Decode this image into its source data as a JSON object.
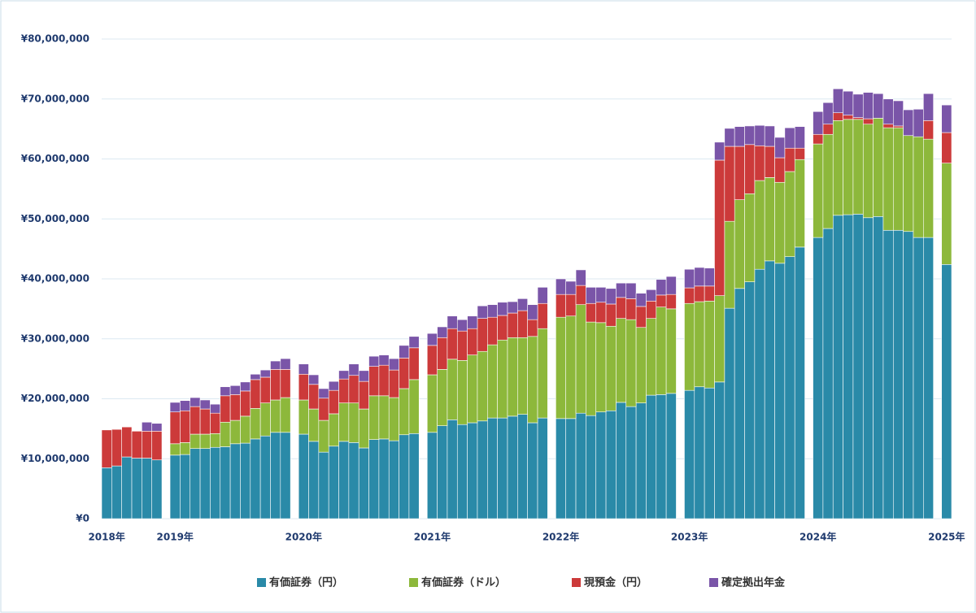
{
  "chart_data": {
    "type": "stacked-bar",
    "categories": [
      "2018年",
      null,
      null,
      null,
      null,
      null,
      "2019年",
      null,
      null,
      null,
      null,
      null,
      null,
      null,
      null,
      null,
      null,
      null,
      "2020年",
      null,
      null,
      null,
      null,
      null,
      null,
      null,
      null,
      null,
      null,
      null,
      "2021年",
      null,
      null,
      null,
      null,
      null,
      null,
      null,
      null,
      null,
      null,
      null,
      "2022年",
      null,
      null,
      null,
      null,
      null,
      null,
      null,
      null,
      null,
      null,
      null,
      "2023年",
      null,
      null,
      null,
      null,
      null,
      null,
      null,
      null,
      null,
      null,
      null,
      "2024年",
      null,
      null,
      null,
      null,
      null,
      null,
      null,
      null,
      null,
      null,
      null,
      "2025年"
    ],
    "series": [
      {
        "name": "有価証券（円）",
        "color": "#2a8aa8",
        "values": [
          8500000,
          8800000,
          10300000,
          10100000,
          10100000,
          9800000,
          10600000,
          10700000,
          11700000,
          11700000,
          11900000,
          12000000,
          12500000,
          12600000,
          13300000,
          13800000,
          14400000,
          14400000,
          14100000,
          12900000,
          11100000,
          12100000,
          12900000,
          12700000,
          11800000,
          13200000,
          13300000,
          13000000,
          14000000,
          14200000,
          14400000,
          15500000,
          16500000,
          15700000,
          16000000,
          16300000,
          16800000,
          16800000,
          17100000,
          17400000,
          16000000,
          16800000,
          16700000,
          16700000,
          17600000,
          17200000,
          17800000,
          18000000,
          19400000,
          18700000,
          19300000,
          20600000,
          20700000,
          20900000,
          21400000,
          22000000,
          21800000,
          22800000,
          35100000,
          38400000,
          39500000,
          41600000,
          43000000,
          42600000,
          43700000,
          45300000,
          46900000,
          48400000,
          50600000,
          50700000,
          50800000,
          50200000,
          50400000,
          48100000,
          48100000,
          47900000,
          46900000,
          46900000,
          42400000
        ]
      },
      {
        "name": "有価証券（ドル）",
        "color": "#8db83b",
        "values": [
          0,
          0,
          0,
          0,
          0,
          0,
          1900000,
          2000000,
          2400000,
          2400000,
          2300000,
          4100000,
          3900000,
          4500000,
          5100000,
          5500000,
          5400000,
          5800000,
          5700000,
          5400000,
          5300000,
          5400000,
          6400000,
          6600000,
          6500000,
          7300000,
          7200000,
          7200000,
          7700000,
          9000000,
          9600000,
          9400000,
          10100000,
          10700000,
          11300000,
          11600000,
          12200000,
          13000000,
          13100000,
          12800000,
          14400000,
          14900000,
          16900000,
          17100000,
          18100000,
          15600000,
          14900000,
          14100000,
          14000000,
          14500000,
          12600000,
          12800000,
          14600000,
          14100000,
          14500000,
          14200000,
          14500000,
          14400000,
          14500000,
          14800000,
          14700000,
          14800000,
          13900000,
          13500000,
          14200000,
          14600000,
          15600000,
          15700000,
          15800000,
          15900000,
          15800000,
          15600000,
          16400000,
          17100000,
          17100000,
          16000000,
          16800000,
          16400000,
          16900000
        ]
      },
      {
        "name": "現預金（円）",
        "color": "#cc3a3a",
        "values": [
          6300000,
          6100000,
          5000000,
          4500000,
          4500000,
          4800000,
          5300000,
          5300000,
          4600000,
          4200000,
          3400000,
          4400000,
          4300000,
          4200000,
          4800000,
          4300000,
          5100000,
          4700000,
          4300000,
          4100000,
          3700000,
          3900000,
          4000000,
          4600000,
          4600000,
          4900000,
          5100000,
          4600000,
          5100000,
          5300000,
          4900000,
          5300000,
          5100000,
          4900000,
          4400000,
          5500000,
          4600000,
          4100000,
          4100000,
          4500000,
          2800000,
          4200000,
          3800000,
          3600000,
          3200000,
          3100000,
          3400000,
          3700000,
          3500000,
          3500000,
          3500000,
          2900000,
          2000000,
          2400000,
          2600000,
          2600000,
          2500000,
          22600000,
          12500000,
          8900000,
          8200000,
          5800000,
          5200000,
          4100000,
          3900000,
          1900000,
          1600000,
          1700000,
          1300000,
          700000,
          300000,
          900000,
          0,
          600000,
          300000,
          0,
          0,
          3100000,
          5100000
        ]
      },
      {
        "name": "確定拠出年金",
        "color": "#7a55a8",
        "values": [
          0,
          0,
          0,
          0,
          1500000,
          1300000,
          1600000,
          1700000,
          1500000,
          1500000,
          1500000,
          1500000,
          1500000,
          1500000,
          900000,
          1200000,
          1400000,
          1800000,
          1700000,
          1600000,
          1600000,
          1500000,
          1400000,
          1900000,
          1800000,
          1700000,
          1700000,
          1900000,
          2100000,
          1900000,
          2000000,
          1800000,
          2100000,
          1900000,
          2100000,
          2100000,
          2100000,
          2200000,
          1900000,
          2000000,
          2500000,
          2700000,
          2600000,
          2200000,
          2600000,
          2700000,
          2500000,
          2600000,
          2400000,
          2600000,
          2200000,
          1900000,
          2600000,
          3000000,
          3100000,
          3100000,
          3000000,
          3000000,
          3000000,
          3300000,
          3100000,
          3400000,
          3400000,
          3400000,
          3400000,
          3600000,
          3800000,
          3600000,
          4000000,
          4000000,
          3900000,
          4400000,
          4100000,
          4200000,
          4200000,
          4300000,
          4600000,
          4500000,
          4600000
        ]
      }
    ],
    "ylim": [
      0,
      80000000
    ],
    "yticks": [
      {
        "value": 0,
        "label": "¥0"
      },
      {
        "value": 10000000,
        "label": "¥10,000,000"
      },
      {
        "value": 20000000,
        "label": "¥20,000,000"
      },
      {
        "value": 30000000,
        "label": "¥30,000,000"
      },
      {
        "value": 40000000,
        "label": "¥40,000,000"
      },
      {
        "value": 50000000,
        "label": "¥50,000,000"
      },
      {
        "value": 60000000,
        "label": "¥60,000,000"
      },
      {
        "value": 70000000,
        "label": "¥70,000,000"
      },
      {
        "value": 80000000,
        "label": "¥80,000,000"
      }
    ],
    "grid": true,
    "legend": "bottom"
  }
}
